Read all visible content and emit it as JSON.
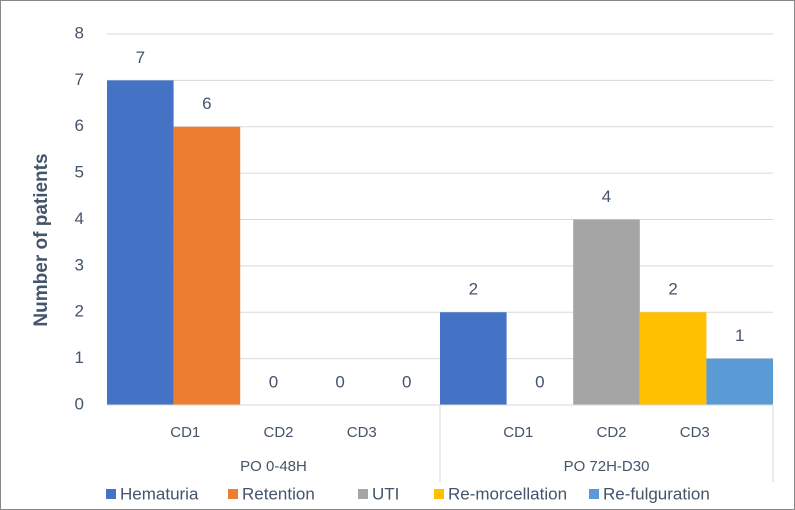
{
  "chart_data": {
    "type": "grouped-bar",
    "y_label": "Number of patients",
    "groups": [
      "PO 0-48H",
      "PO 72H-D30"
    ],
    "subcategories": [
      "CD1",
      "CD2",
      "CD3"
    ],
    "series": [
      {
        "name": "Hematuria",
        "color": "#4472c4",
        "values": [
          7,
          2
        ]
      },
      {
        "name": "Retention",
        "color": "#ed7d31",
        "values": [
          6,
          0
        ]
      },
      {
        "name": "UTI",
        "color": "#a5a5a5",
        "values": [
          0,
          4
        ]
      },
      {
        "name": "Re-morcellation",
        "color": "#ffc000",
        "values": [
          0,
          2
        ]
      },
      {
        "name": "Re-fulguration",
        "color": "#5b9bd5",
        "values": [
          0,
          1
        ]
      }
    ],
    "ylim": [
      0,
      8
    ],
    "yticks": [
      0,
      1,
      2,
      3,
      4,
      5,
      6,
      7,
      8
    ],
    "grid": true
  }
}
